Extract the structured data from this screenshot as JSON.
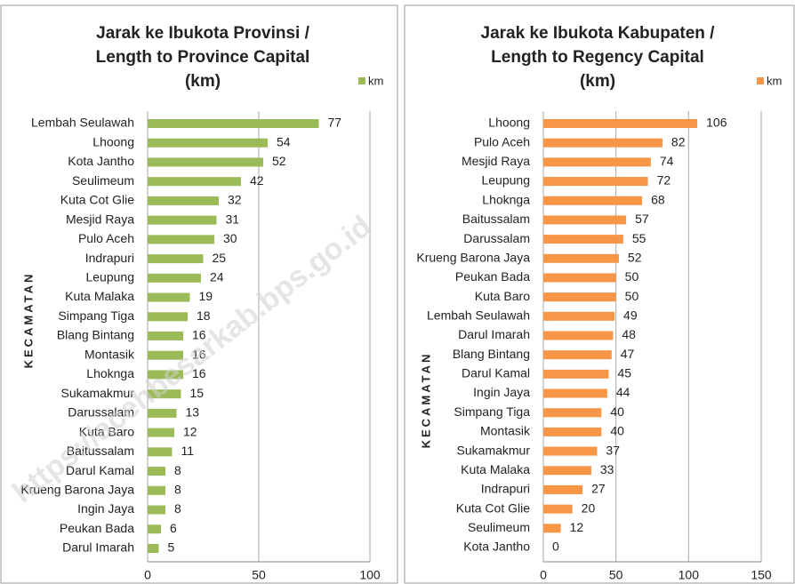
{
  "watermark": "https://acehbesarkab.bps.go.id",
  "chart_data": [
    {
      "type": "bar",
      "orientation": "horizontal",
      "title": [
        "Jarak ke Ibukota Provinsi /",
        "Length to Province Capital",
        "(km)"
      ],
      "y_label": "KECAMATAN",
      "categories": [
        "Lembah Seulawah",
        "Lhoong",
        "Kota Jantho",
        "Seulimeum",
        "Kuta Cot Glie",
        "Mesjid Raya",
        "Pulo Aceh",
        "Indrapuri",
        "Leupung",
        "Kuta Malaka",
        "Simpang Tiga",
        "Blang Bintang",
        "Montasik",
        "Lhoknga",
        "Sukamakmur",
        "Darussalam",
        "Kuta Baro",
        "Baitussalam",
        "Darul Kamal",
        "Krueng Barona Jaya",
        "Ingin Jaya",
        "Peukan Bada",
        "Darul Imarah"
      ],
      "series": [
        {
          "name": "km",
          "color": "#9bbb59",
          "values": [
            77,
            54,
            52,
            42,
            32,
            31,
            30,
            25,
            24,
            19,
            18,
            16,
            16,
            16,
            15,
            13,
            12,
            11,
            8,
            8,
            8,
            6,
            5
          ]
        }
      ],
      "xlim": [
        0,
        100
      ],
      "xticks": [
        0,
        50,
        100
      ],
      "grid": true,
      "legend": "top-right"
    },
    {
      "type": "bar",
      "orientation": "horizontal",
      "title": [
        "Jarak ke Ibukota Kabupaten /",
        "Length to Regency Capital",
        "(km)"
      ],
      "y_label": "KECAMATAN",
      "categories": [
        "Lhoong",
        "Pulo Aceh",
        "Mesjid Raya",
        "Leupung",
        "Lhoknga",
        "Baitussalam",
        "Darussalam",
        "Krueng Barona Jaya",
        "Peukan Bada",
        "Kuta Baro",
        "Lembah Seulawah",
        "Darul Imarah",
        "Blang Bintang",
        "Darul Kamal",
        "Ingin Jaya",
        "Simpang Tiga",
        "Montasik",
        "Sukamakmur",
        "Kuta Malaka",
        "Indrapuri",
        "Kuta Cot Glie",
        "Seulimeum",
        "Kota Jantho"
      ],
      "series": [
        {
          "name": "km",
          "color": "#f79646",
          "values": [
            106,
            82,
            74,
            72,
            68,
            57,
            55,
            52,
            50,
            50,
            49,
            48,
            47,
            45,
            44,
            40,
            40,
            37,
            33,
            27,
            20,
            12,
            0
          ]
        }
      ],
      "xlim": [
        0,
        150
      ],
      "xticks": [
        0,
        50,
        100,
        150
      ],
      "grid": true,
      "legend": "top-right"
    }
  ]
}
